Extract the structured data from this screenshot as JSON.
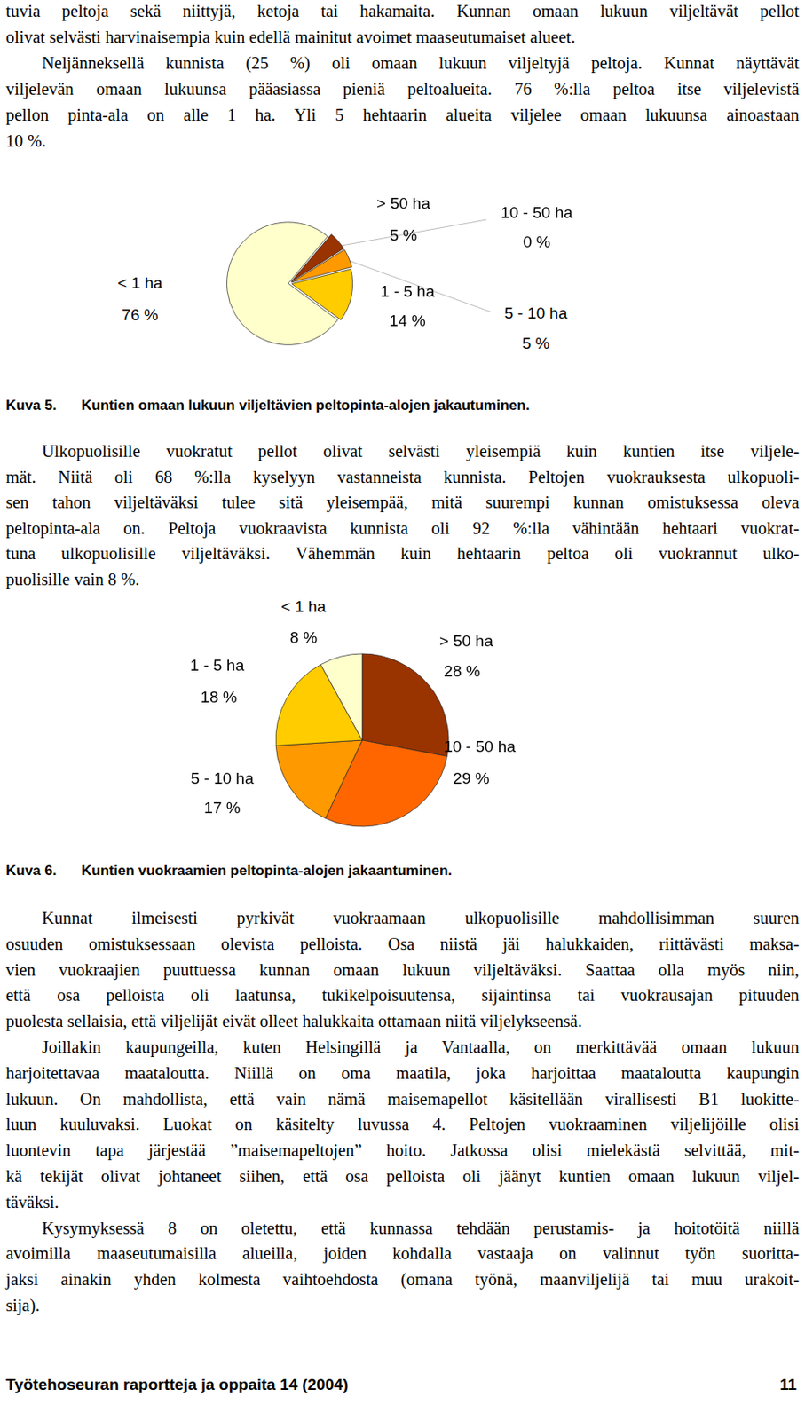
{
  "chart_data": [
    {
      "type": "pie",
      "categories": [
        "> 50 ha",
        "10 - 50 ha",
        "5 - 10 ha",
        "1 - 5 ha",
        "< 1 ha"
      ],
      "values": [
        5,
        0,
        5,
        14,
        76
      ],
      "value_labels": [
        "5 %",
        "0 %",
        "5 %",
        "14 %",
        "76 %"
      ],
      "colors": [
        "#993300",
        "#ff6600",
        "#ff9900",
        "#ffcc00",
        "#ffffcc"
      ],
      "data_labels": true
    },
    {
      "type": "pie",
      "categories": [
        "> 50 ha",
        "10 - 50 ha",
        "5 - 10 ha",
        "1 - 5 ha",
        "< 1 ha"
      ],
      "values": [
        28,
        29,
        17,
        18,
        8
      ],
      "value_labels": [
        "28 %",
        "29 %",
        "17 %",
        "18 %",
        "8 %"
      ],
      "colors": [
        "#993300",
        "#ff6600",
        "#ff9900",
        "#ffcc00",
        "#ffffcc"
      ],
      "data_labels": true
    }
  ],
  "document": {
    "paragraphs": [
      [
        "tuvia peltoja sekä niittyjä, ketoja tai hakamaita. Kunnan omaan lukuun viljeltävät pellot",
        "olivat selvästi harvinaisempia kuin edellä mainitut avoimet maaseutumaiset alueet."
      ],
      [
        "Neljänneksellä kunnista (25 %) oli omaan lukuun viljeltyjä peltoja. Kunnat näyttävät",
        "viljelevän omaan lukuunsa pääasiassa pieniä peltoalueita. 76 %:lla peltoa itse viljelevistä",
        "pellon pinta-ala on alle 1 ha. Yli 5 hehtaarin alueita viljelee omaan lukuunsa ainoastaan",
        "10 %."
      ],
      [
        "Ulkopuolisille vuokratut pellot olivat selvästi yleisempiä kuin kuntien itse viljele-",
        "mät. Niitä oli 68 %:lla kyselyyn vastanneista kunnista. Peltojen vuokrauksesta ulkopuoli-",
        "sen tahon viljeltäväksi tulee sitä yleisempää, mitä suurempi kunnan omistuksessa oleva",
        "peltopinta-ala on. Peltoja vuokraavista kunnista oli 92 %:lla vähintään hehtaari vuokrat-",
        "tuna ulkopuolisille viljeltäväksi. Vähemmän kuin hehtaarin peltoa oli vuokrannut ulko-",
        "puolisille vain 8 %."
      ],
      [
        "Kunnat ilmeisesti pyrkivät vuokraamaan ulkopuolisille mahdollisimman suuren",
        "osuuden omistuksessaan olevista pelloista. Osa niistä jäi halukkaiden, riittävästi maksa-",
        "vien vuokraajien puuttuessa kunnan omaan lukuun viljeltäväksi. Saattaa olla myös niin,",
        "että osa pelloista oli laatunsa, tukikelpoisuutensa, sijaintinsa tai vuokrausajan pituuden",
        "puolesta sellaisia, että viljelijät eivät olleet halukkaita ottamaan niitä viljelykseensä."
      ],
      [
        "Joillakin kaupungeilla, kuten Helsingillä ja Vantaalla, on merkittävää omaan lukuun",
        "harjoitettavaa maataloutta. Niillä on oma maatila, joka harjoittaa maataloutta kaupungin",
        "lukuun. On mahdollista, että vain nämä maisemapellot käsitellään virallisesti B1 luokitte-",
        "luun kuuluvaksi. Luokat on käsitelty luvussa 4. Peltojen vuokraaminen viljelijöille olisi",
        "luontevin tapa järjestää ”maisemapeltojen” hoito. Jatkossa olisi mielekästä selvittää, mit-",
        "kä tekijät olivat johtaneet siihen, että osa pelloista oli jäänyt kuntien omaan lukuun viljel-",
        "täväksi."
      ],
      [
        "Kysymyksessä 8 on oletettu, että kunnassa tehdään perustamis- ja hoitotöitä niillä",
        "avoimilla maaseutumaisilla alueilla, joiden kohdalla vastaaja on valinnut työn suoritta-",
        "jaksi ainakin yhden kolmesta vaihtoehdosta (omana työnä, maanviljelijä tai muu urakoit-",
        "sija)."
      ]
    ],
    "captions": [
      {
        "label": "Kuva 5.",
        "text": "Kuntien omaan lukuun viljeltävien peltopinta-alojen jakautuminen."
      },
      {
        "label": "Kuva 6.",
        "text": "Kuntien vuokraamien peltopinta-alojen jakaantuminen."
      }
    ],
    "footer": {
      "title": "Työtehoseuran raportteja ja oppaita 14 (2004)",
      "page": 11
    }
  }
}
